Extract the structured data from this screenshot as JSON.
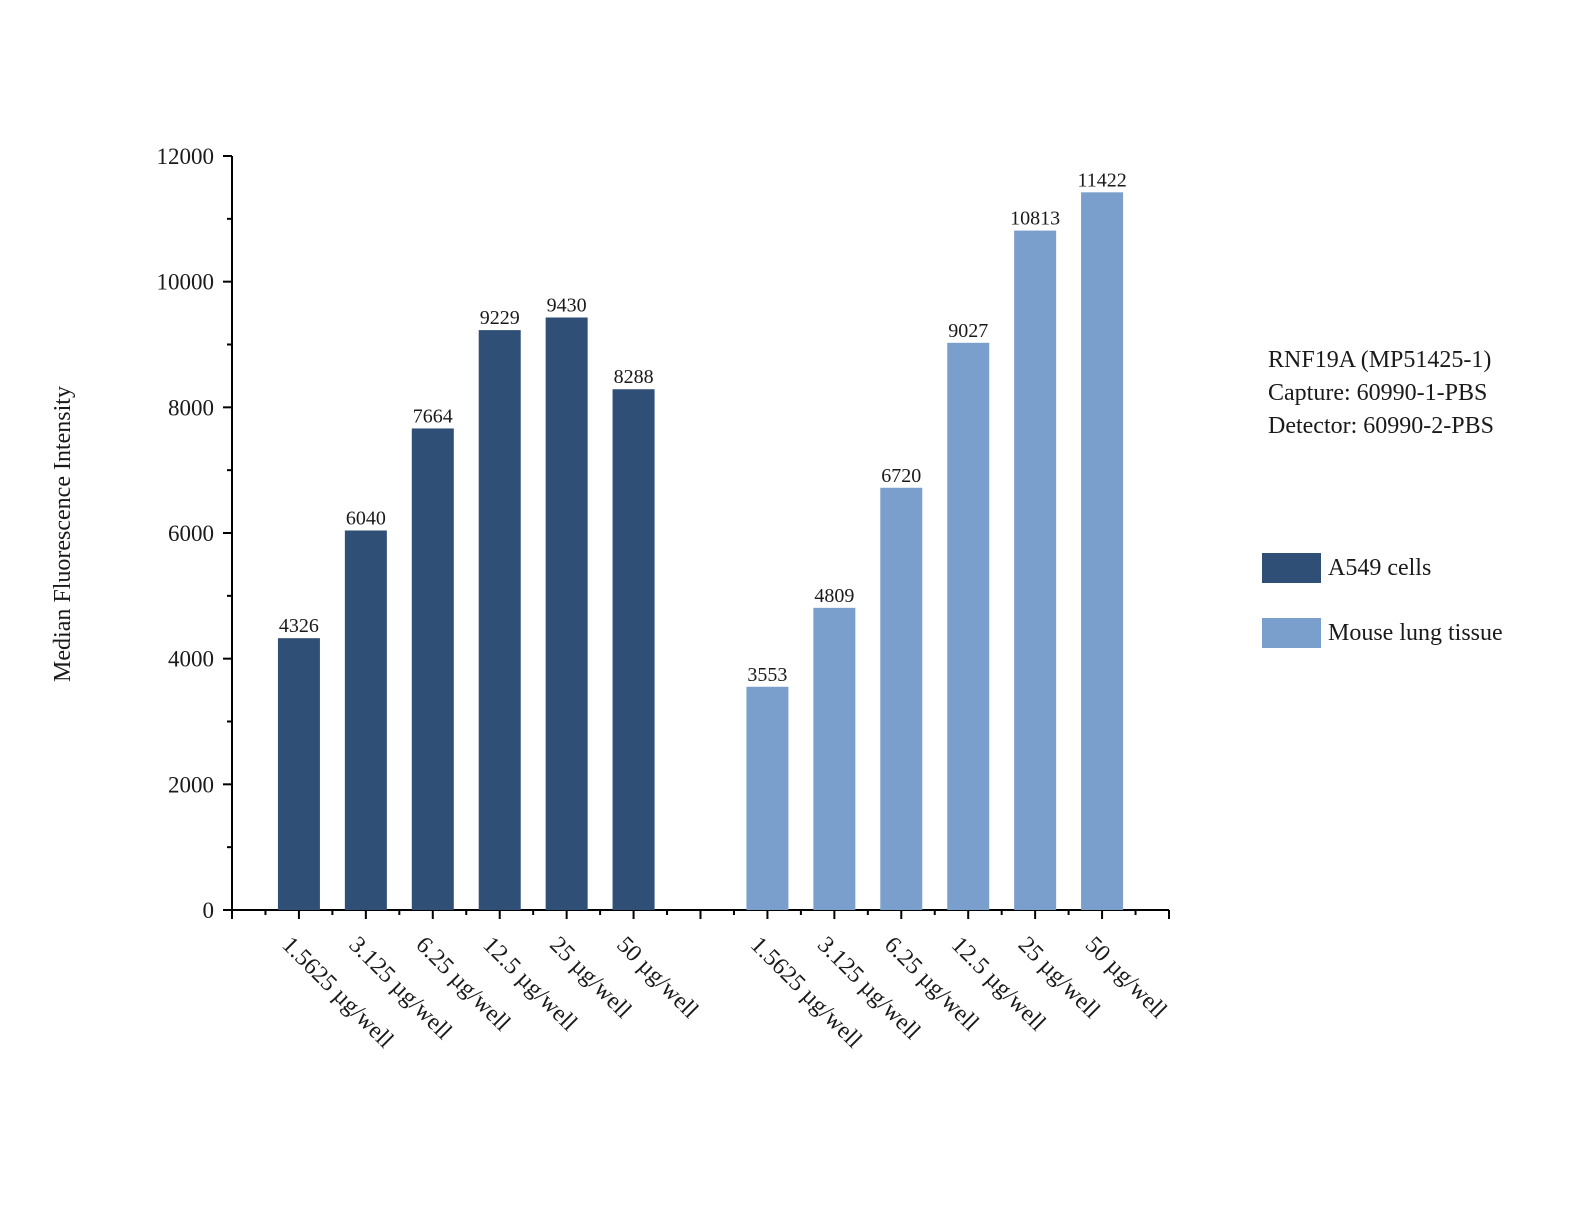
{
  "chart_data": {
    "type": "bar",
    "title": "",
    "xlabel": "",
    "ylabel": "Median Fluorescence Intensity",
    "ylim": [
      0,
      12000
    ],
    "yticks": [
      "0",
      "2000",
      "4000",
      "6000",
      "8000",
      "10000",
      "12000"
    ],
    "series": [
      {
        "name": "A549 cells",
        "color": "#2f4f77",
        "categories": [
          "1.5625 µg/well",
          "3.125 µg/well",
          "6.25 µg/well",
          "12.5 µg/well",
          "25 µg/well",
          "50 µg/well"
        ],
        "values": [
          4326,
          6040,
          7664,
          9229,
          9430,
          8288
        ],
        "labels": [
          "4326",
          "6040",
          "7664",
          "9229",
          "9430",
          "8288"
        ]
      },
      {
        "name": "Mouse lung tissue",
        "color": "#7b9fcc",
        "categories": [
          "1.5625 µg/well",
          "3.125 µg/well",
          "6.25 µg/well",
          "12.5 µg/well",
          "25 µg/well",
          "50 µg/well"
        ],
        "values": [
          3553,
          4809,
          6720,
          9027,
          10813,
          11422
        ],
        "labels": [
          "3553",
          "4809",
          "6720",
          "9027",
          "10813",
          "11422"
        ]
      }
    ],
    "legend": {
      "position": "right",
      "entries": [
        "A549 cells",
        "Mouse lung tissue"
      ]
    },
    "annotation": {
      "line1": "RNF19A (MP51425-1)",
      "line2": "Capture: 60990-1-PBS",
      "line3": "Detector: 60990-2-PBS"
    }
  }
}
